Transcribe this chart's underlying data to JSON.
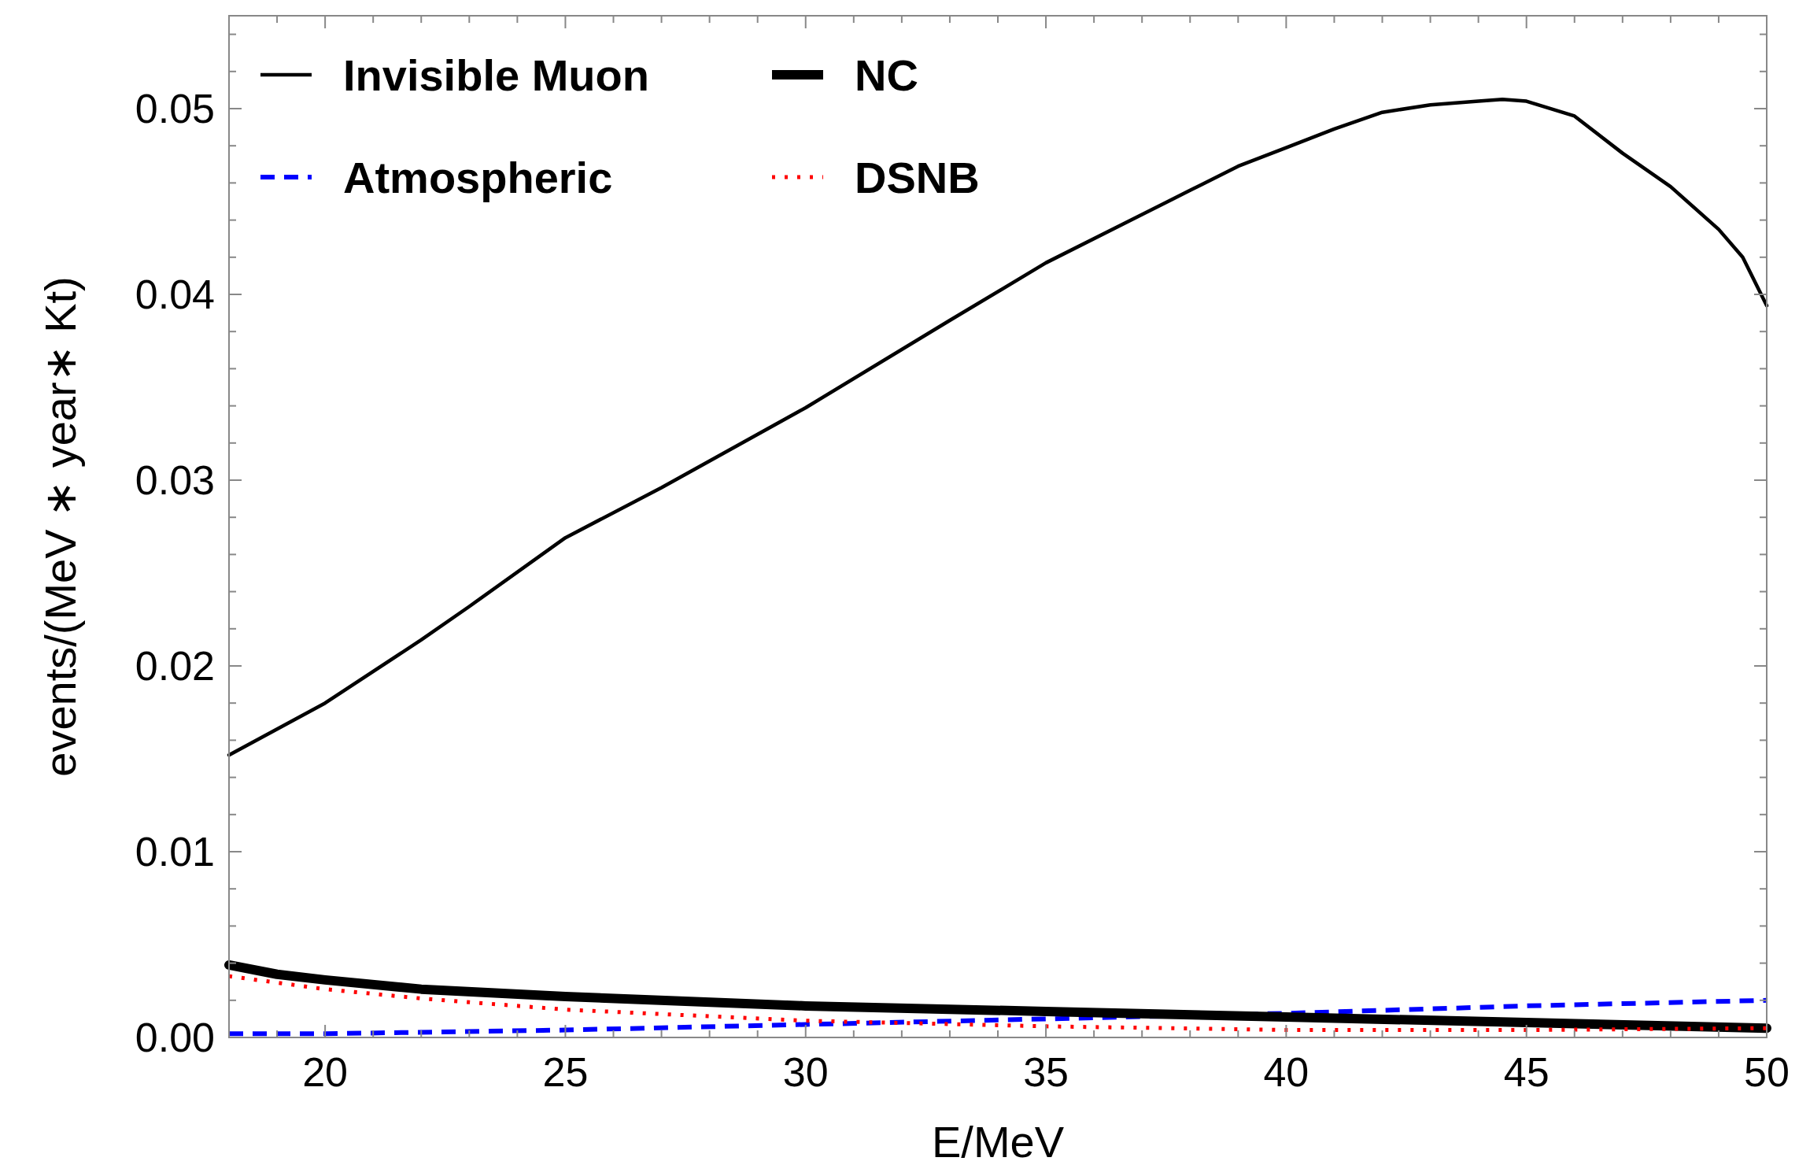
{
  "chart_data": {
    "type": "line",
    "xlabel": "E/MeV",
    "ylabel": "events/(MeV ∗ year∗ Kt)",
    "xlim": [
      18,
      50
    ],
    "ylim": [
      0,
      0.055
    ],
    "xticks": [
      20,
      25,
      30,
      35,
      40,
      45,
      50
    ],
    "yticks": [
      {
        "value": 0,
        "label": "0.00"
      },
      {
        "value": 0.01,
        "label": "0.01"
      },
      {
        "value": 0.02,
        "label": "0.02"
      },
      {
        "value": 0.03,
        "label": "0.03"
      },
      {
        "value": 0.04,
        "label": "0.04"
      },
      {
        "value": 0.05,
        "label": "0.05"
      }
    ],
    "legend": "top left",
    "grid": false,
    "series": [
      {
        "name": "Invisible Muon",
        "color": "#000000",
        "line_style": "solid",
        "x": [
          18,
          20,
          22,
          23,
          25,
          27,
          30,
          33,
          35,
          37,
          38,
          39,
          40,
          41,
          42,
          43,
          44,
          44.5,
          45,
          46,
          47,
          48,
          49,
          49.5,
          50
        ],
        "values": [
          0.0152,
          0.018,
          0.0214,
          0.0232,
          0.0269,
          0.0296,
          0.0339,
          0.0386,
          0.0417,
          0.0443,
          0.0456,
          0.0469,
          0.0479,
          0.0489,
          0.0498,
          0.0502,
          0.0504,
          0.0505,
          0.0504,
          0.0496,
          0.0476,
          0.0458,
          0.0435,
          0.042,
          0.0394
        ]
      },
      {
        "name": "Atmospheric",
        "color": "#0000ff",
        "line_style": "dashed",
        "x": [
          18,
          20,
          25,
          30,
          35,
          40,
          45,
          50
        ],
        "values": [
          0.0002,
          0.0002,
          0.0004,
          0.0007,
          0.001,
          0.0013,
          0.0017,
          0.002
        ]
      },
      {
        "name": "NC",
        "color": "#000000",
        "line_style": "solid",
        "x": [
          18,
          19,
          20,
          22,
          25,
          30,
          35,
          40,
          45,
          50
        ],
        "values": [
          0.0039,
          0.0034,
          0.0031,
          0.0026,
          0.0022,
          0.0017,
          0.0014,
          0.0011,
          0.0008,
          0.0005
        ]
      },
      {
        "name": "DSNB",
        "color": "#ff0000",
        "line_style": "dotted",
        "x": [
          18,
          20,
          22,
          25,
          30,
          35,
          40,
          45,
          50
        ],
        "values": [
          0.0033,
          0.0026,
          0.0021,
          0.0015,
          0.0009,
          0.0006,
          0.0004,
          0.0004,
          0.0005
        ]
      }
    ]
  }
}
